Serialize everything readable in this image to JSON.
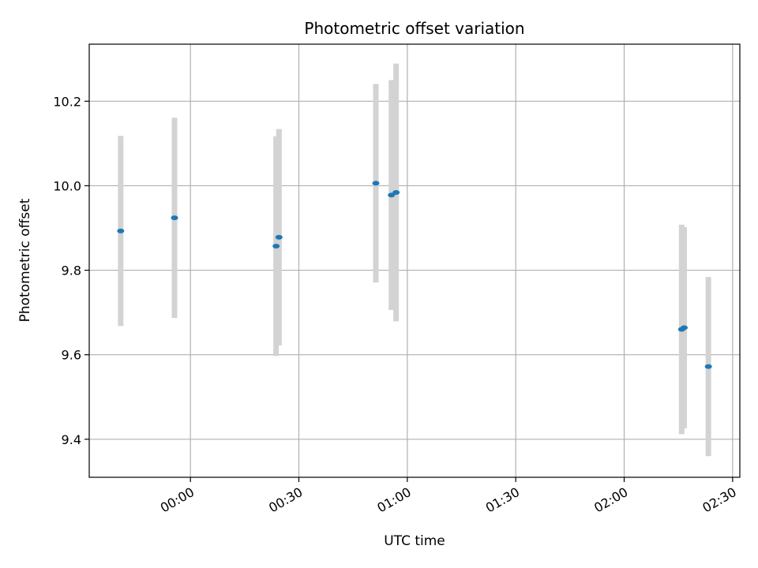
{
  "chart_data": {
    "type": "scatter",
    "title": "Photometric offset variation",
    "xlabel": "UTC time",
    "ylabel": "Photometric offset",
    "x_tick_labels": [
      "00:00",
      "00:30",
      "01:00",
      "01:30",
      "02:00",
      "02:30"
    ],
    "x_tick_minutes": [
      0,
      30,
      60,
      90,
      120,
      150
    ],
    "y_ticks": [
      9.4,
      9.6,
      9.8,
      10.0,
      10.2
    ],
    "y_tick_labels": [
      "9.4",
      "9.6",
      "9.8",
      "10.0",
      "10.2"
    ],
    "xlim_minutes": [
      -28,
      152
    ],
    "ylim": [
      9.31,
      10.335
    ],
    "grid": true,
    "point_color": "#1f77b4",
    "errorbar_color": "#d3d3d3",
    "points": [
      {
        "x": -19.3,
        "y": 9.893,
        "err": 0.225
      },
      {
        "x": -4.4,
        "y": 9.924,
        "err": 0.237
      },
      {
        "x": 23.7,
        "y": 9.857,
        "err": 0.26
      },
      {
        "x": 24.5,
        "y": 9.878,
        "err": 0.256
      },
      {
        "x": 51.3,
        "y": 10.006,
        "err": 0.235
      },
      {
        "x": 55.6,
        "y": 9.978,
        "err": 0.272
      },
      {
        "x": 56.9,
        "y": 9.984,
        "err": 0.305
      },
      {
        "x": 135.9,
        "y": 9.66,
        "err": 0.248
      },
      {
        "x": 136.6,
        "y": 9.664,
        "err": 0.238
      },
      {
        "x": 143.3,
        "y": 9.572,
        "err": 0.212
      }
    ]
  }
}
